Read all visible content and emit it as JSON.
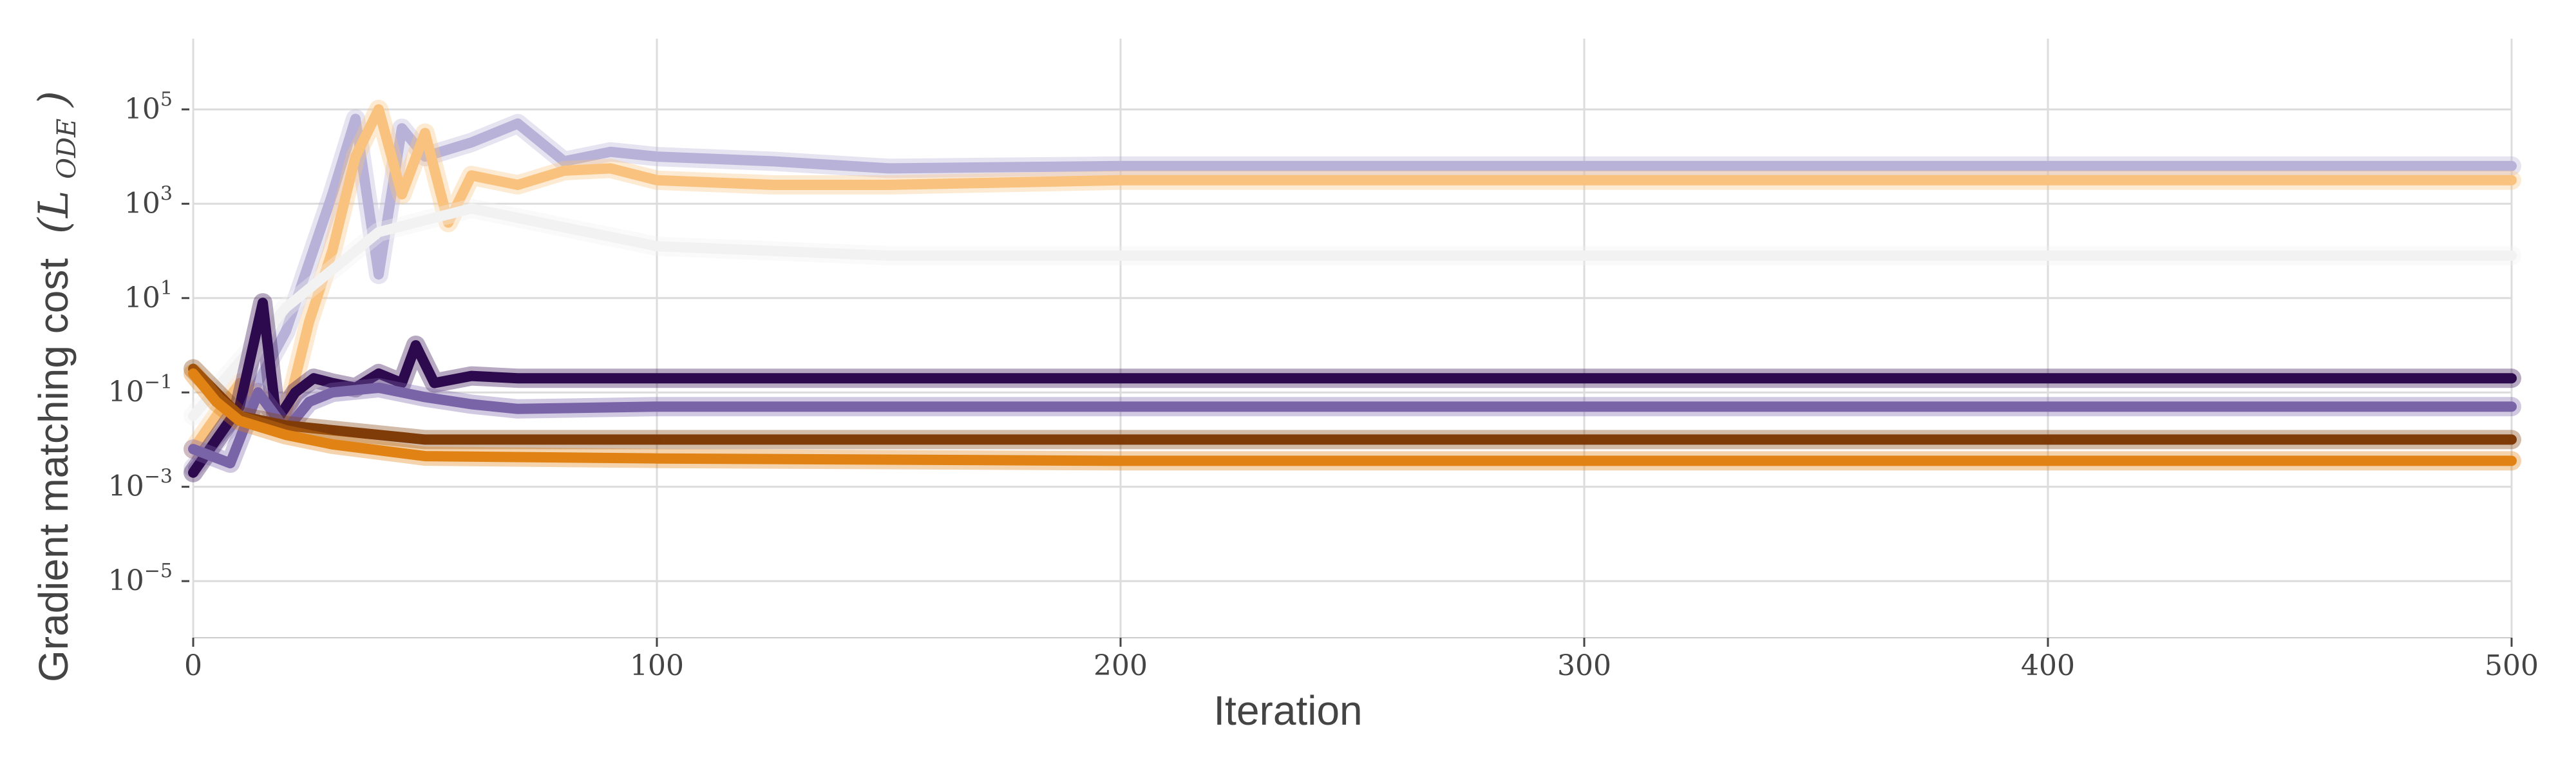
{
  "chart_data": {
    "type": "line",
    "title": "",
    "xlabel": "Iteration",
    "ylabel_text": "Gradient matching cost",
    "ylabel_math": "(L",
    "ylabel_sub": "ODE",
    "ylabel_close": ")",
    "xlim": [
      0,
      500
    ],
    "ylim_log10": [
      -6.2,
      6.5
    ],
    "yscale": "log",
    "grid": true,
    "legend": "none",
    "xticks": [
      0,
      100,
      200,
      300,
      400,
      500
    ],
    "xtick_labels": [
      "0",
      "100",
      "200",
      "300",
      "400",
      "500"
    ],
    "yticks_log10": [
      5,
      3,
      1,
      -1,
      -3,
      -5
    ],
    "ytick_base": "10",
    "ytick_exps": [
      "5",
      "3",
      "1",
      "−1",
      "−3",
      "−5"
    ],
    "series": [
      {
        "color": "#b9b2d8",
        "points": [
          [
            0,
            -2.6
          ],
          [
            10,
            -1.5
          ],
          [
            20,
            0.3
          ],
          [
            30,
            3.2
          ],
          [
            35,
            4.8
          ],
          [
            40,
            1.5
          ],
          [
            45,
            4.6
          ],
          [
            50,
            4.0
          ],
          [
            60,
            4.3
          ],
          [
            70,
            4.7
          ],
          [
            80,
            3.9
          ],
          [
            90,
            4.1
          ],
          [
            100,
            4.0
          ],
          [
            125,
            3.9
          ],
          [
            150,
            3.75
          ],
          [
            200,
            3.8
          ],
          [
            250,
            3.8
          ],
          [
            300,
            3.8
          ],
          [
            350,
            3.8
          ],
          [
            400,
            3.8
          ],
          [
            450,
            3.8
          ],
          [
            500,
            3.8
          ]
        ]
      },
      {
        "color": "#f9c27e",
        "points": [
          [
            0,
            -2.2
          ],
          [
            10,
            -0.8
          ],
          [
            20,
            -1.5
          ],
          [
            25,
            0.5
          ],
          [
            30,
            2.0
          ],
          [
            35,
            4.0
          ],
          [
            40,
            5.0
          ],
          [
            45,
            3.2
          ],
          [
            50,
            4.5
          ],
          [
            55,
            2.6
          ],
          [
            60,
            3.6
          ],
          [
            70,
            3.4
          ],
          [
            80,
            3.7
          ],
          [
            90,
            3.75
          ],
          [
            100,
            3.5
          ],
          [
            125,
            3.4
          ],
          [
            150,
            3.4
          ],
          [
            200,
            3.5
          ],
          [
            250,
            3.5
          ],
          [
            300,
            3.5
          ],
          [
            350,
            3.5
          ],
          [
            400,
            3.5
          ],
          [
            450,
            3.5
          ],
          [
            500,
            3.5
          ]
        ]
      },
      {
        "color": "#f2f2f2",
        "points": [
          [
            0,
            -1.5
          ],
          [
            20,
            0.8
          ],
          [
            40,
            2.4
          ],
          [
            60,
            2.9
          ],
          [
            80,
            2.5
          ],
          [
            100,
            2.1
          ],
          [
            125,
            2.0
          ],
          [
            150,
            1.9
          ],
          [
            200,
            1.9
          ],
          [
            300,
            1.9
          ],
          [
            400,
            1.9
          ],
          [
            500,
            1.9
          ]
        ]
      },
      {
        "color": "#2d0a4e",
        "points": [
          [
            0,
            -2.7
          ],
          [
            5,
            -2.0
          ],
          [
            10,
            -1.3
          ],
          [
            15,
            0.9
          ],
          [
            18,
            -1.6
          ],
          [
            22,
            -1.0
          ],
          [
            26,
            -0.7
          ],
          [
            30,
            -0.8
          ],
          [
            35,
            -0.9
          ],
          [
            40,
            -0.6
          ],
          [
            45,
            -0.8
          ],
          [
            48,
            0.0
          ],
          [
            52,
            -0.8
          ],
          [
            60,
            -0.65
          ],
          [
            70,
            -0.7
          ],
          [
            100,
            -0.7
          ],
          [
            200,
            -0.7
          ],
          [
            300,
            -0.7
          ],
          [
            400,
            -0.7
          ],
          [
            500,
            -0.7
          ]
        ]
      },
      {
        "color": "#7a64a8",
        "points": [
          [
            0,
            -2.2
          ],
          [
            8,
            -2.5
          ],
          [
            14,
            -1.0
          ],
          [
            20,
            -1.8
          ],
          [
            25,
            -1.2
          ],
          [
            30,
            -1.0
          ],
          [
            40,
            -0.9
          ],
          [
            50,
            -1.1
          ],
          [
            60,
            -1.25
          ],
          [
            70,
            -1.35
          ],
          [
            100,
            -1.3
          ],
          [
            200,
            -1.3
          ],
          [
            300,
            -1.3
          ],
          [
            400,
            -1.3
          ],
          [
            500,
            -1.3
          ]
        ]
      },
      {
        "color": "#7f3b08",
        "points": [
          [
            0,
            -0.5
          ],
          [
            5,
            -1.0
          ],
          [
            10,
            -1.5
          ],
          [
            20,
            -1.7
          ],
          [
            30,
            -1.8
          ],
          [
            50,
            -2.0
          ],
          [
            100,
            -2.0
          ],
          [
            200,
            -2.0
          ],
          [
            300,
            -2.0
          ],
          [
            400,
            -2.0
          ],
          [
            500,
            -2.0
          ]
        ]
      },
      {
        "color": "#e08214",
        "points": [
          [
            0,
            -0.6
          ],
          [
            5,
            -1.2
          ],
          [
            10,
            -1.6
          ],
          [
            20,
            -1.9
          ],
          [
            30,
            -2.1
          ],
          [
            50,
            -2.35
          ],
          [
            100,
            -2.4
          ],
          [
            200,
            -2.45
          ],
          [
            300,
            -2.45
          ],
          [
            400,
            -2.45
          ],
          [
            500,
            -2.45
          ]
        ]
      }
    ]
  }
}
